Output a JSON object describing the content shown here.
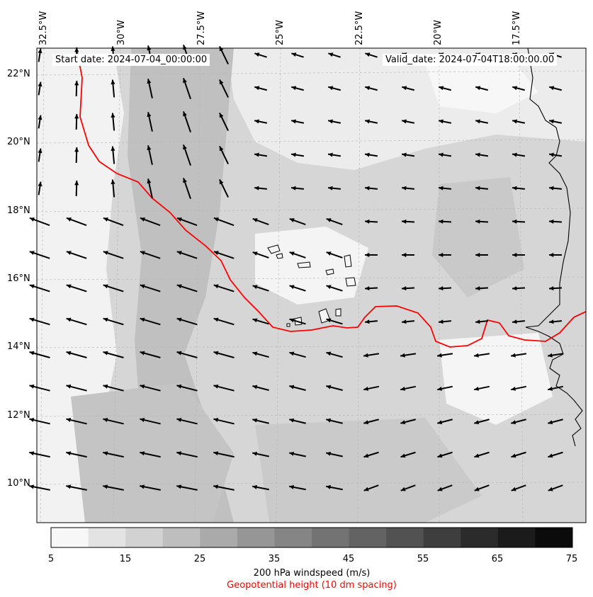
{
  "map": {
    "start_date_text": "Start date: 2024-07-04_00:00:00",
    "valid_date_text": "Valid_date: 2024-07-04T18:00:00.00",
    "longitude_labels": [
      "32.5°W",
      "30°W",
      "27.5°W",
      "25°W",
      "22.5°W",
      "20°W",
      "17.5°W"
    ],
    "latitude_labels": [
      "22°N",
      "20°N",
      "18°N",
      "16°N",
      "14°N",
      "12°N",
      "10°N"
    ],
    "shading_colors": [
      "#f5f5f5",
      "#e3e3e3",
      "#d2d2d2",
      "#bebebe",
      "#a8a8a8"
    ],
    "geopotential_contour_color": "#ff0000",
    "coastline_color": "#000000",
    "arrow_color": "#000000"
  },
  "colorbar": {
    "tick_labels": [
      "5",
      "15",
      "25",
      "35",
      "45",
      "55",
      "65",
      "75"
    ],
    "colors": [
      "#f7f7f7",
      "#e3e3e3",
      "#d2d2d2",
      "#bebebe",
      "#aaaaaa",
      "#969696",
      "#858585",
      "#737373",
      "#636363",
      "#525252",
      "#3e3e3e",
      "#2b2b2b",
      "#1b1b1b",
      "#0b0b0b"
    ],
    "label": "200 hPa windspeed (m/s)",
    "sublabel": "Geopotential height (10 dm spacing)",
    "sublabel_color": "#ff0000"
  }
}
